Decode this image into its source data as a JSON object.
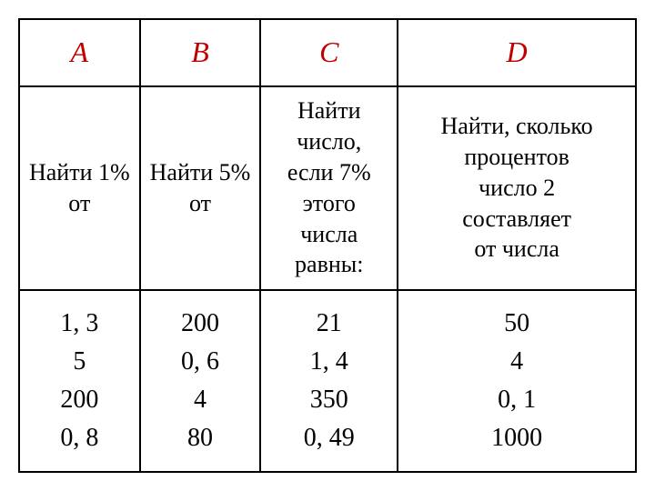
{
  "table": {
    "headers": [
      "A",
      "B",
      "C",
      "D"
    ],
    "descriptions": [
      "Найти 1%\nот",
      "Найти 5%\nот",
      "Найти\nчисло,\nесли 7%\nэтого\nчисла\nравны:",
      "Найти, сколько\nпроцентов\nчисло 2\nсоставляет\nот числа"
    ],
    "data": [
      "1, 3\n5\n200\n0, 8",
      "200\n0, 6\n4\n80",
      "21\n1, 4\n350\n0, 49",
      "50\n4\n0, 1\n1000"
    ],
    "colors": {
      "header_text": "#c00000",
      "body_text": "#000000",
      "border": "#000000",
      "background": "#ffffff"
    },
    "fonts": {
      "header_size": 32,
      "desc_size": 26,
      "data_size": 28,
      "family": "Times New Roman"
    }
  }
}
